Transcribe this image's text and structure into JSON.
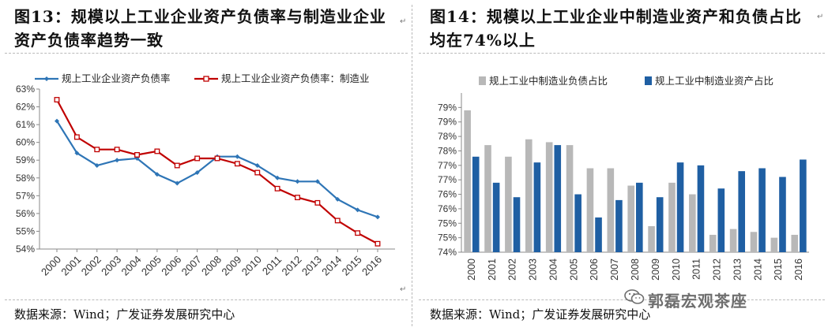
{
  "left": {
    "title": "图13：规模以上工业企业资产负债率与制造业企业资产负债率趋势一致",
    "source": "数据来源：Wind；广发证券发展研究中心",
    "chart_data": {
      "type": "line",
      "title": "",
      "xlabel": "",
      "ylabel": "",
      "x": [
        "2000",
        "2001",
        "2002",
        "2003",
        "2004",
        "2005",
        "2006",
        "2007",
        "2008",
        "2009",
        "2010",
        "2011",
        "2012",
        "2013",
        "2014",
        "2015",
        "2016"
      ],
      "ylim": [
        54,
        63
      ],
      "yticks": [
        "54%",
        "55%",
        "56%",
        "57%",
        "58%",
        "59%",
        "60%",
        "61%",
        "62%",
        "63%"
      ],
      "grid": false,
      "legend": "top",
      "series": [
        {
          "name": "规上工业企业资产负债率",
          "color": "#2e75b6",
          "marker": "diamond",
          "values": [
            61.2,
            59.4,
            58.7,
            59.0,
            59.1,
            58.2,
            57.7,
            58.3,
            59.2,
            59.2,
            58.7,
            58.0,
            57.8,
            57.8,
            56.8,
            56.2,
            55.8
          ]
        },
        {
          "name": "规上工业企业资产负债率：制造业",
          "color": "#c00000",
          "marker": "square",
          "values": [
            62.4,
            60.3,
            59.6,
            59.6,
            59.3,
            59.5,
            58.7,
            59.1,
            59.1,
            58.8,
            58.3,
            57.4,
            56.9,
            56.6,
            55.6,
            54.9,
            54.3
          ]
        }
      ]
    }
  },
  "right": {
    "title": "图14：规模以上工业企业中制造业资产和负债占比均在74%以上",
    "source": "数据来源：Wind；广发证券发展研究中心",
    "chart_data": {
      "type": "bar",
      "title": "",
      "xlabel": "",
      "ylabel": "",
      "categories": [
        "2000",
        "2001",
        "2002",
        "2003",
        "2004",
        "2005",
        "2006",
        "2007",
        "2008",
        "2009",
        "2010",
        "2011",
        "2012",
        "2013",
        "2014",
        "2015",
        "2016"
      ],
      "ylim": [
        74,
        79.5
      ],
      "yticks": [
        "74%",
        "75%",
        "75%",
        "76%",
        "76%",
        "77%",
        "77%",
        "78%",
        "78%",
        "79%",
        "79%"
      ],
      "grid": false,
      "legend": "top",
      "series": [
        {
          "name": "规上工业中制造业负债占比",
          "color": "#b8b8b8",
          "values": [
            78.9,
            77.7,
            77.3,
            77.9,
            77.8,
            77.7,
            76.9,
            76.9,
            76.3,
            74.9,
            76.4,
            76.0,
            74.6,
            74.8,
            74.7,
            74.5,
            74.6
          ]
        },
        {
          "name": "规上工业中制造业资产占比",
          "color": "#1f5fa3",
          "values": [
            77.3,
            76.4,
            75.9,
            77.1,
            77.7,
            76.0,
            75.2,
            75.8,
            76.4,
            75.9,
            77.1,
            77.0,
            76.2,
            76.8,
            76.9,
            76.6,
            77.2
          ]
        }
      ]
    }
  },
  "watermark": {
    "text": "郭磊宏观茶座",
    "icon": "wechat-icon"
  },
  "marks": {
    "paragraph": "↵"
  }
}
